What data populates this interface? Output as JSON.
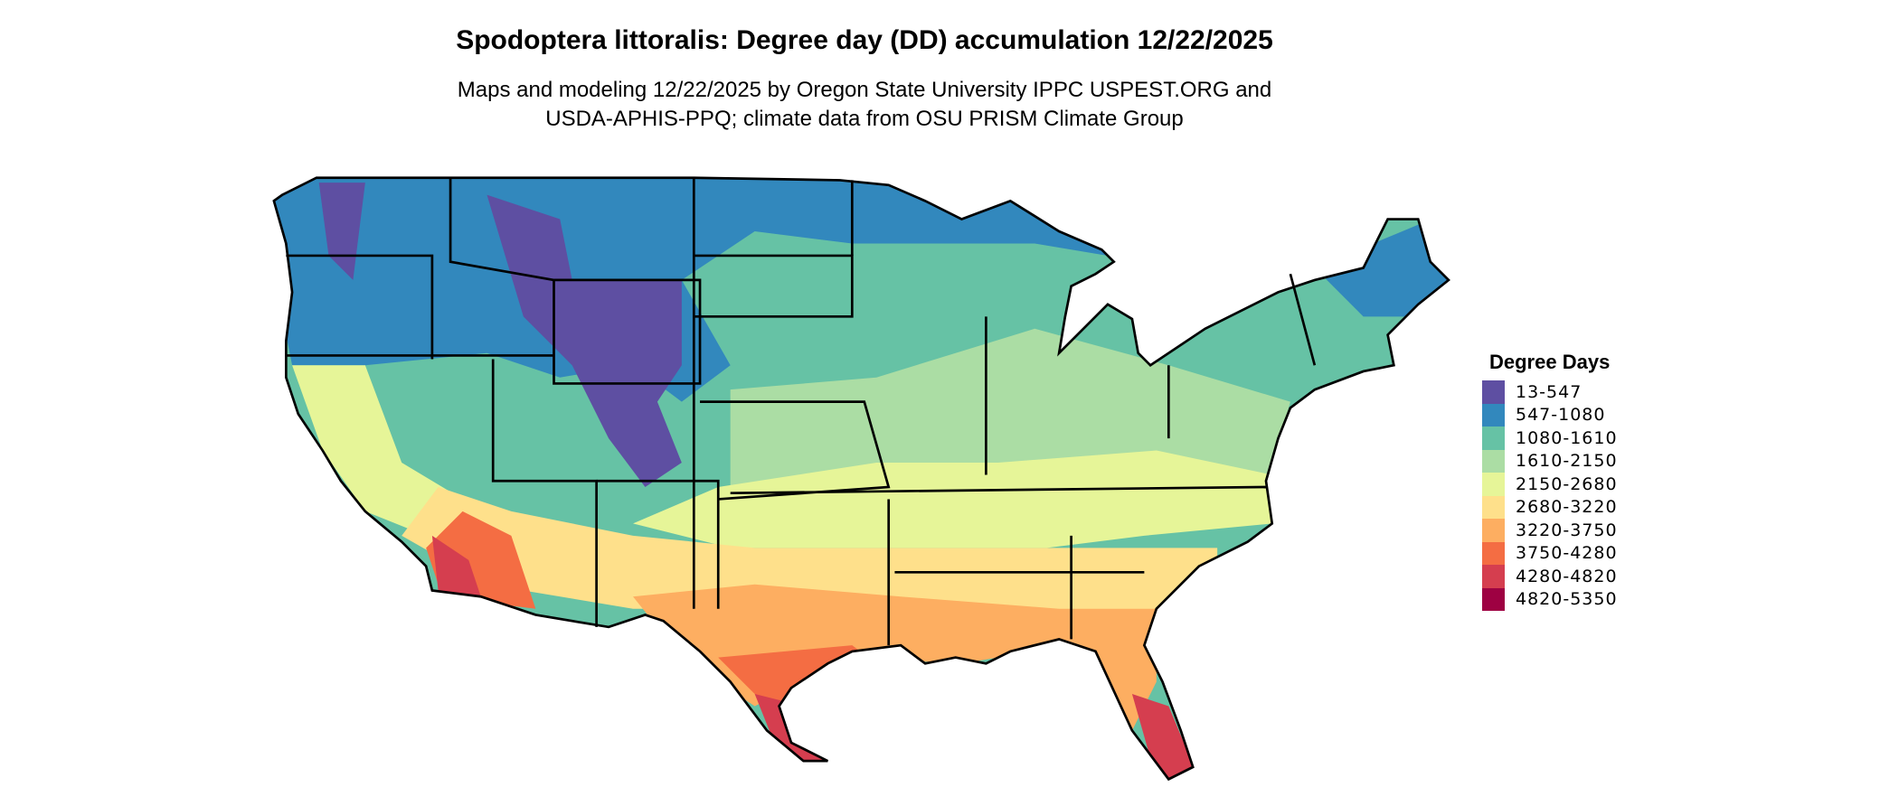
{
  "title": "Spodoptera littoralis: Degree day (DD) accumulation 12/22/2025",
  "subtitle_line1": "Maps and modeling 12/22/2025 by Oregon State University IPPC USPEST.ORG and",
  "subtitle_line2": "USDA-APHIS-PPQ; climate data from OSU PRISM Climate Group",
  "legend": {
    "title": "Degree Days",
    "placement": "right",
    "items": [
      {
        "label": "13-547",
        "color": "#5e4fa2"
      },
      {
        "label": "547-1080",
        "color": "#3288bd"
      },
      {
        "label": "1080-1610",
        "color": "#66c2a5"
      },
      {
        "label": "1610-2150",
        "color": "#abdda4"
      },
      {
        "label": "2150-2680",
        "color": "#e6f598"
      },
      {
        "label": "2680-3220",
        "color": "#fee08b"
      },
      {
        "label": "3220-3750",
        "color": "#fdae61"
      },
      {
        "label": "3750-4280",
        "color": "#f46d43"
      },
      {
        "label": "4280-4820",
        "color": "#d53e4f"
      },
      {
        "label": "4820-5350",
        "color": "#9e0142"
      }
    ]
  },
  "map": {
    "region": "Contiguous United States",
    "borders": "state",
    "border_color": "#000000"
  }
}
